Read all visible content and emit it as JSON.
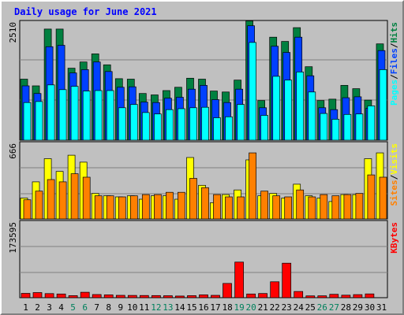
{
  "chart_data": {
    "type": "bar",
    "title": "Daily usage for June 2021",
    "categories": [
      "1",
      "2",
      "3",
      "4",
      "5",
      "6",
      "7",
      "8",
      "9",
      "10",
      "11",
      "12",
      "13",
      "14",
      "15",
      "16",
      "17",
      "18",
      "19",
      "20",
      "21",
      "22",
      "23",
      "24",
      "25",
      "26",
      "27",
      "28",
      "29",
      "30",
      "31"
    ],
    "weekend_days": [
      "5",
      "6",
      "12",
      "13",
      "19",
      "20",
      "26",
      "27"
    ],
    "panels": [
      {
        "name": "hits-files-pages",
        "ymax_label": "2510",
        "ymax": 2510,
        "legend": [
          "Pages",
          "/",
          "Files",
          "/",
          "Hits"
        ],
        "series": [
          {
            "name": "Hits",
            "color": "#008040",
            "values": [
              1280,
              1140,
              2330,
              2330,
              1510,
              1640,
              1810,
              1580,
              1290,
              1280,
              980,
              950,
              1040,
              1110,
              1300,
              1280,
              1030,
              1010,
              1260,
              2500,
              830,
              2160,
              2070,
              2360,
              1540,
              830,
              860,
              1150,
              1080,
              840,
              2020
            ]
          },
          {
            "name": "Files",
            "color": "#0040ff",
            "values": [
              1140,
              980,
              1960,
              1990,
              1410,
              1480,
              1640,
              1440,
              1110,
              1120,
              800,
              790,
              880,
              900,
              1070,
              1150,
              850,
              790,
              1070,
              2400,
              680,
              1970,
              1840,
              2160,
              1350,
              680,
              640,
              890,
              910,
              670,
              1880
            ]
          },
          {
            "name": "Pages",
            "color": "#00ffff",
            "values": [
              790,
              810,
              1160,
              1060,
              1130,
              1030,
              1040,
              1040,
              680,
              750,
              580,
              550,
              640,
              660,
              680,
              690,
              470,
              490,
              750,
              2050,
              520,
              1340,
              1260,
              1430,
              1010,
              560,
              440,
              540,
              550,
              720,
              1480
            ]
          }
        ]
      },
      {
        "name": "visits-sites",
        "ymax_label": "666",
        "ymax": 666,
        "legend": [
          "Sites",
          "/",
          "Visits"
        ],
        "series": [
          {
            "name": "Visits",
            "color": "#ffff00",
            "values": [
              180,
              320,
              520,
              410,
              550,
              490,
              220,
              200,
              190,
              200,
              170,
              200,
              200,
              170,
              530,
              290,
              140,
              210,
              250,
              510,
              200,
              220,
              180,
              300,
              200,
              180,
              150,
              210,
              210,
              520,
              570
            ]
          },
          {
            "name": "Sites",
            "color": "#ff8000",
            "values": [
              165,
              240,
              340,
              320,
              390,
              360,
              200,
              200,
              190,
              200,
              210,
              210,
              230,
              230,
              350,
              270,
              210,
              190,
              190,
              570,
              240,
              200,
              190,
              250,
              190,
              210,
              200,
              210,
              220,
              380,
              360
            ]
          }
        ]
      },
      {
        "name": "kbytes",
        "ymax_label": "173595",
        "ymax": 173595,
        "legend": [
          "KBytes"
        ],
        "series": [
          {
            "name": "KBytes",
            "color": "#ff0000",
            "values": [
              9690,
              11500,
              9140,
              8360,
              4670,
              12300,
              7070,
              6410,
              5340,
              5220,
              5040,
              4720,
              4490,
              3710,
              4520,
              6330,
              5250,
              32000,
              80000,
              8300,
              9440,
              35800,
              77500,
              14000,
              4090,
              4290,
              7700,
              5650,
              6920,
              8450,
              0
            ]
          }
        ]
      }
    ]
  },
  "colors": {
    "background": "#c0c0c0",
    "title": "#0000ff",
    "axis_text": "#000000",
    "weekend_label": "#00805c",
    "gridline": "#808080"
  }
}
